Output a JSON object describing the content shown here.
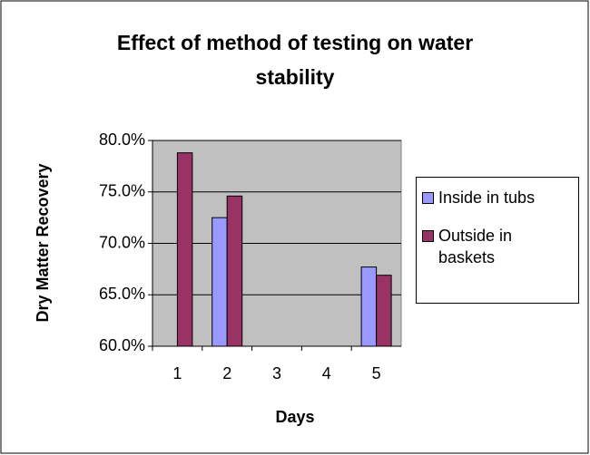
{
  "chart_data": {
    "type": "bar",
    "title": "Effect of method of testing on water stability",
    "xlabel": "Days",
    "ylabel": "Dry Matter Recovery",
    "categories": [
      "1",
      "2",
      "3",
      "4",
      "5"
    ],
    "series": [
      {
        "name": "Inside in tubs",
        "color": "#9999ff",
        "values": [
          null,
          72.5,
          null,
          null,
          67.7
        ]
      },
      {
        "name": "Outside in baskets",
        "color": "#993366",
        "values": [
          78.8,
          74.6,
          null,
          null,
          66.9
        ]
      }
    ],
    "ylim": [
      60,
      80
    ],
    "yticks": [
      {
        "value": 60,
        "label": "60.0%"
      },
      {
        "value": 65,
        "label": "65.0%"
      },
      {
        "value": 70,
        "label": "70.0%"
      },
      {
        "value": 75,
        "label": "75.0%"
      },
      {
        "value": 80,
        "label": "80.0%"
      }
    ],
    "grid": true,
    "legend": "right"
  }
}
